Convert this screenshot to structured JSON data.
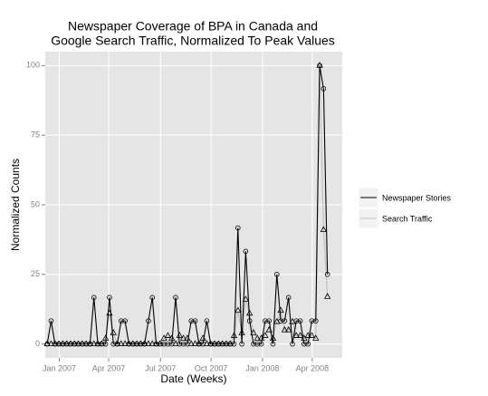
{
  "chart_data": {
    "type": "line",
    "title": [
      "Newspaper Coverage of BPA in Canada and",
      "Google Search Traffic, Normalized To Peak Values"
    ],
    "x_label": "Date (Weeks)",
    "y_label": "Normalized Counts",
    "x": [
      0,
      1,
      2,
      3,
      4,
      5,
      6,
      7,
      8,
      9,
      10,
      11,
      12,
      13,
      14,
      15,
      16,
      17,
      18,
      19,
      20,
      21,
      22,
      23,
      24,
      25,
      26,
      27,
      28,
      29,
      30,
      31,
      32,
      33,
      34,
      35,
      36,
      37,
      38,
      39,
      40,
      41,
      42,
      43,
      44,
      45,
      46,
      47,
      48,
      49,
      50,
      51,
      52,
      53,
      54,
      55,
      56,
      57,
      58,
      59,
      60,
      61,
      62,
      63,
      64,
      65,
      66,
      67,
      68,
      69,
      70,
      71,
      72
    ],
    "series": [
      {
        "name": "Newspaper Stories",
        "color": "#000000",
        "marker": "circle",
        "values": [
          0,
          8.3,
          0,
          0,
          0,
          0,
          0,
          0,
          0,
          0,
          0,
          0,
          16.7,
          0,
          0,
          0,
          16.7,
          0,
          0,
          8.3,
          8.3,
          0,
          0,
          0,
          0,
          0,
          8.3,
          16.7,
          0,
          0,
          0,
          0,
          0,
          16.7,
          0,
          0,
          0,
          8.3,
          8.3,
          0,
          0,
          8.3,
          0,
          0,
          0,
          0,
          0,
          0,
          0,
          41.7,
          0,
          33.3,
          8.3,
          0,
          0,
          0,
          8.3,
          8.3,
          0,
          25,
          8.3,
          8.3,
          16.7,
          0,
          8.3,
          8.3,
          0,
          0,
          8.3,
          8.3,
          100,
          91.7,
          25
        ]
      },
      {
        "name": "Search Traffic",
        "color": "#bdbdbd",
        "marker": "triangle",
        "values": [
          0,
          0,
          0,
          0,
          0,
          0,
          0,
          0,
          0,
          0,
          0,
          0,
          0,
          0,
          0,
          2,
          11,
          4,
          0,
          0,
          0,
          0,
          0,
          0,
          0,
          0,
          0,
          0,
          0,
          0,
          2,
          3,
          2,
          0,
          3,
          2,
          2,
          0,
          0,
          0,
          2,
          0,
          0,
          0,
          0,
          0,
          0,
          0,
          3,
          12,
          4,
          16,
          11,
          4,
          2,
          2,
          3,
          5,
          2,
          8,
          12,
          5,
          5,
          8,
          3,
          3,
          2,
          3,
          3,
          2,
          100,
          41,
          17
        ]
      }
    ],
    "xlim": [
      -0.5,
      75.8
    ],
    "xticks": [
      {
        "value": 3.1,
        "label": "Jan 2007"
      },
      {
        "value": 15.8,
        "label": "Apr 2007"
      },
      {
        "value": 29.1,
        "label": "Jul 2007"
      },
      {
        "value": 42.1,
        "label": "Oct 2007"
      },
      {
        "value": 55.3,
        "label": "Jan 2008"
      },
      {
        "value": 68.1,
        "label": "Apr 2008"
      }
    ],
    "ylim": [
      -5,
      105
    ],
    "yticks": [
      0,
      25,
      50,
      75,
      100
    ],
    "grid": true,
    "legend": "right"
  }
}
